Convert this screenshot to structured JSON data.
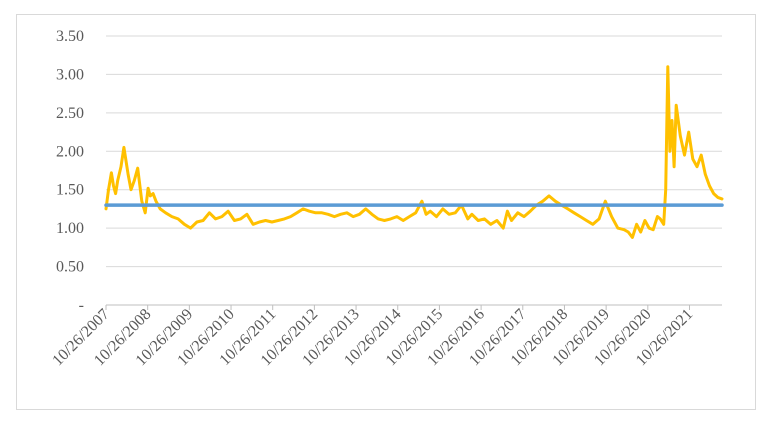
{
  "chart_data": {
    "type": "line",
    "title": "",
    "xlabel": "",
    "ylabel": "",
    "ylim": [
      0,
      3.5
    ],
    "y_ticks": [
      {
        "value": 0,
        "label": "-"
      },
      {
        "value": 0.5,
        "label": "0.50"
      },
      {
        "value": 1.0,
        "label": "1.00"
      },
      {
        "value": 1.5,
        "label": "1.50"
      },
      {
        "value": 2.0,
        "label": "2.00"
      },
      {
        "value": 2.5,
        "label": "2.50"
      },
      {
        "value": 3.0,
        "label": "3.00"
      },
      {
        "value": 3.5,
        "label": "3.50"
      }
    ],
    "x_tick_labels": [
      "10/26/2007",
      "10/26/2008",
      "10/26/2009",
      "10/26/2010",
      "10/26/2011",
      "10/26/2012",
      "10/26/2013",
      "10/26/2014",
      "10/26/2015",
      "10/26/2016",
      "10/26/2017",
      "10/26/2018",
      "10/26/2019",
      "10/26/2020",
      "10/26/2021"
    ],
    "x_range": [
      2007.82,
      2022.6
    ],
    "grid": true,
    "legend": "none",
    "series": [
      {
        "color": "#FFC000",
        "x": [
          2007.82,
          2007.88,
          2007.95,
          2008.0,
          2008.05,
          2008.1,
          2008.18,
          2008.25,
          2008.35,
          2008.42,
          2008.5,
          2008.58,
          2008.68,
          2008.76,
          2008.83,
          2008.88,
          2008.95,
          2009.02,
          2009.12,
          2009.25,
          2009.4,
          2009.55,
          2009.7,
          2009.85,
          2010.0,
          2010.15,
          2010.3,
          2010.45,
          2010.6,
          2010.75,
          2010.9,
          2011.05,
          2011.2,
          2011.35,
          2011.5,
          2011.65,
          2011.8,
          2011.95,
          2012.1,
          2012.25,
          2012.4,
          2012.55,
          2012.7,
          2012.85,
          2013.0,
          2013.15,
          2013.3,
          2013.45,
          2013.6,
          2013.75,
          2013.9,
          2014.05,
          2014.2,
          2014.35,
          2014.5,
          2014.65,
          2014.8,
          2014.95,
          2015.1,
          2015.25,
          2015.4,
          2015.5,
          2015.6,
          2015.75,
          2015.9,
          2016.05,
          2016.2,
          2016.35,
          2016.5,
          2016.6,
          2016.75,
          2016.9,
          2017.05,
          2017.2,
          2017.35,
          2017.45,
          2017.55,
          2017.7,
          2017.85,
          2018.0,
          2018.15,
          2018.3,
          2018.45,
          2018.6,
          2018.75,
          2018.9,
          2019.05,
          2019.2,
          2019.35,
          2019.5,
          2019.65,
          2019.8,
          2019.95,
          2020.1,
          2020.25,
          2020.35,
          2020.45,
          2020.55,
          2020.65,
          2020.75,
          2020.85,
          2020.95,
          2021.05,
          2021.12,
          2021.2,
          2021.25,
          2021.3,
          2021.35,
          2021.4,
          2021.45,
          2021.5,
          2021.6,
          2021.7,
          2021.8,
          2021.9,
          2022.0,
          2022.1,
          2022.2,
          2022.3,
          2022.4,
          2022.5,
          2022.6
        ],
        "y": [
          1.25,
          1.5,
          1.72,
          1.55,
          1.45,
          1.62,
          1.8,
          2.05,
          1.7,
          1.5,
          1.62,
          1.78,
          1.35,
          1.2,
          1.52,
          1.42,
          1.45,
          1.35,
          1.25,
          1.2,
          1.15,
          1.12,
          1.05,
          1.0,
          1.08,
          1.1,
          1.2,
          1.12,
          1.15,
          1.22,
          1.1,
          1.12,
          1.18,
          1.05,
          1.08,
          1.1,
          1.08,
          1.1,
          1.12,
          1.15,
          1.2,
          1.25,
          1.22,
          1.2,
          1.2,
          1.18,
          1.15,
          1.18,
          1.2,
          1.15,
          1.18,
          1.25,
          1.18,
          1.12,
          1.1,
          1.12,
          1.15,
          1.1,
          1.15,
          1.2,
          1.35,
          1.18,
          1.22,
          1.15,
          1.25,
          1.18,
          1.2,
          1.3,
          1.12,
          1.18,
          1.1,
          1.12,
          1.05,
          1.1,
          1.0,
          1.22,
          1.1,
          1.2,
          1.15,
          1.22,
          1.3,
          1.35,
          1.42,
          1.35,
          1.3,
          1.25,
          1.2,
          1.15,
          1.1,
          1.05,
          1.12,
          1.35,
          1.15,
          1.0,
          0.98,
          0.95,
          0.88,
          1.05,
          0.95,
          1.1,
          1.0,
          0.98,
          1.15,
          1.12,
          1.05,
          1.5,
          3.1,
          2.0,
          2.4,
          1.8,
          2.6,
          2.2,
          1.95,
          2.25,
          1.9,
          1.8,
          1.95,
          1.7,
          1.55,
          1.45,
          1.4,
          1.38
        ]
      },
      {
        "color": "#5B9BD5",
        "x": [
          2007.82,
          2022.6
        ],
        "y": [
          1.3,
          1.3
        ]
      }
    ]
  }
}
